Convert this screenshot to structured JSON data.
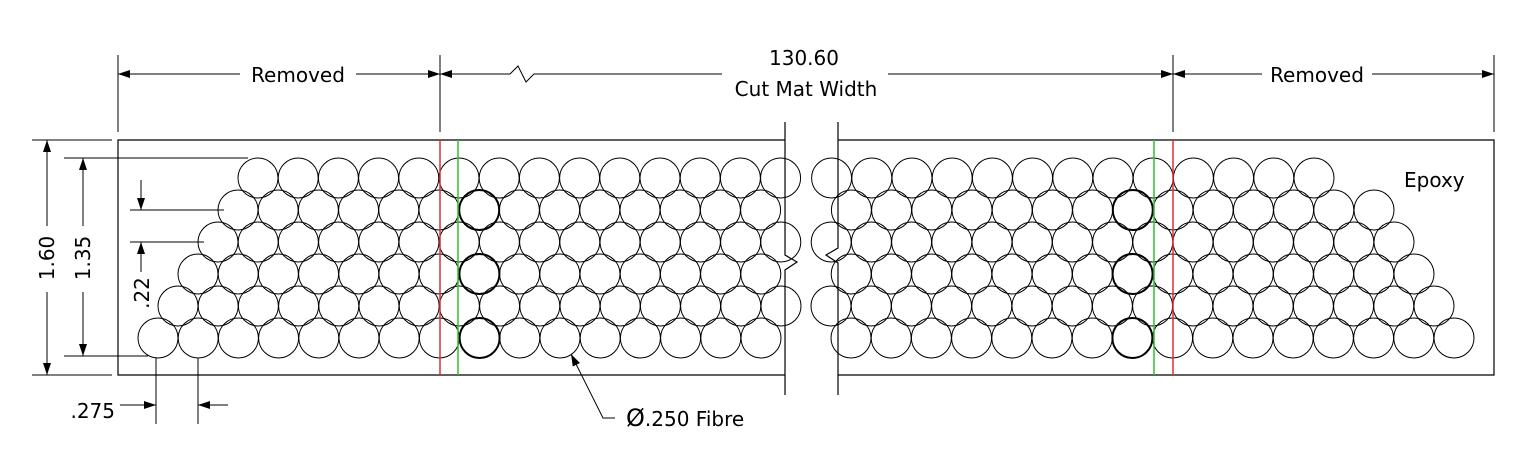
{
  "labels": {
    "overall_width": "130.60",
    "overall_width_caption": "Cut Mat Width",
    "removed_left": "Removed",
    "removed_right": "Removed",
    "matrix_material": "Epoxy",
    "height_outer": "1.60",
    "height_inner": "1.35",
    "row_pitch": ".22",
    "fibre_pitch": ".275",
    "fibre_diameter_symbol": "Ø",
    "fibre_callout": ".250 Fibre"
  },
  "colors": {
    "ink": "#000000",
    "cut_line_red": "#e03030",
    "cut_line_green": "#2ec02e"
  }
}
